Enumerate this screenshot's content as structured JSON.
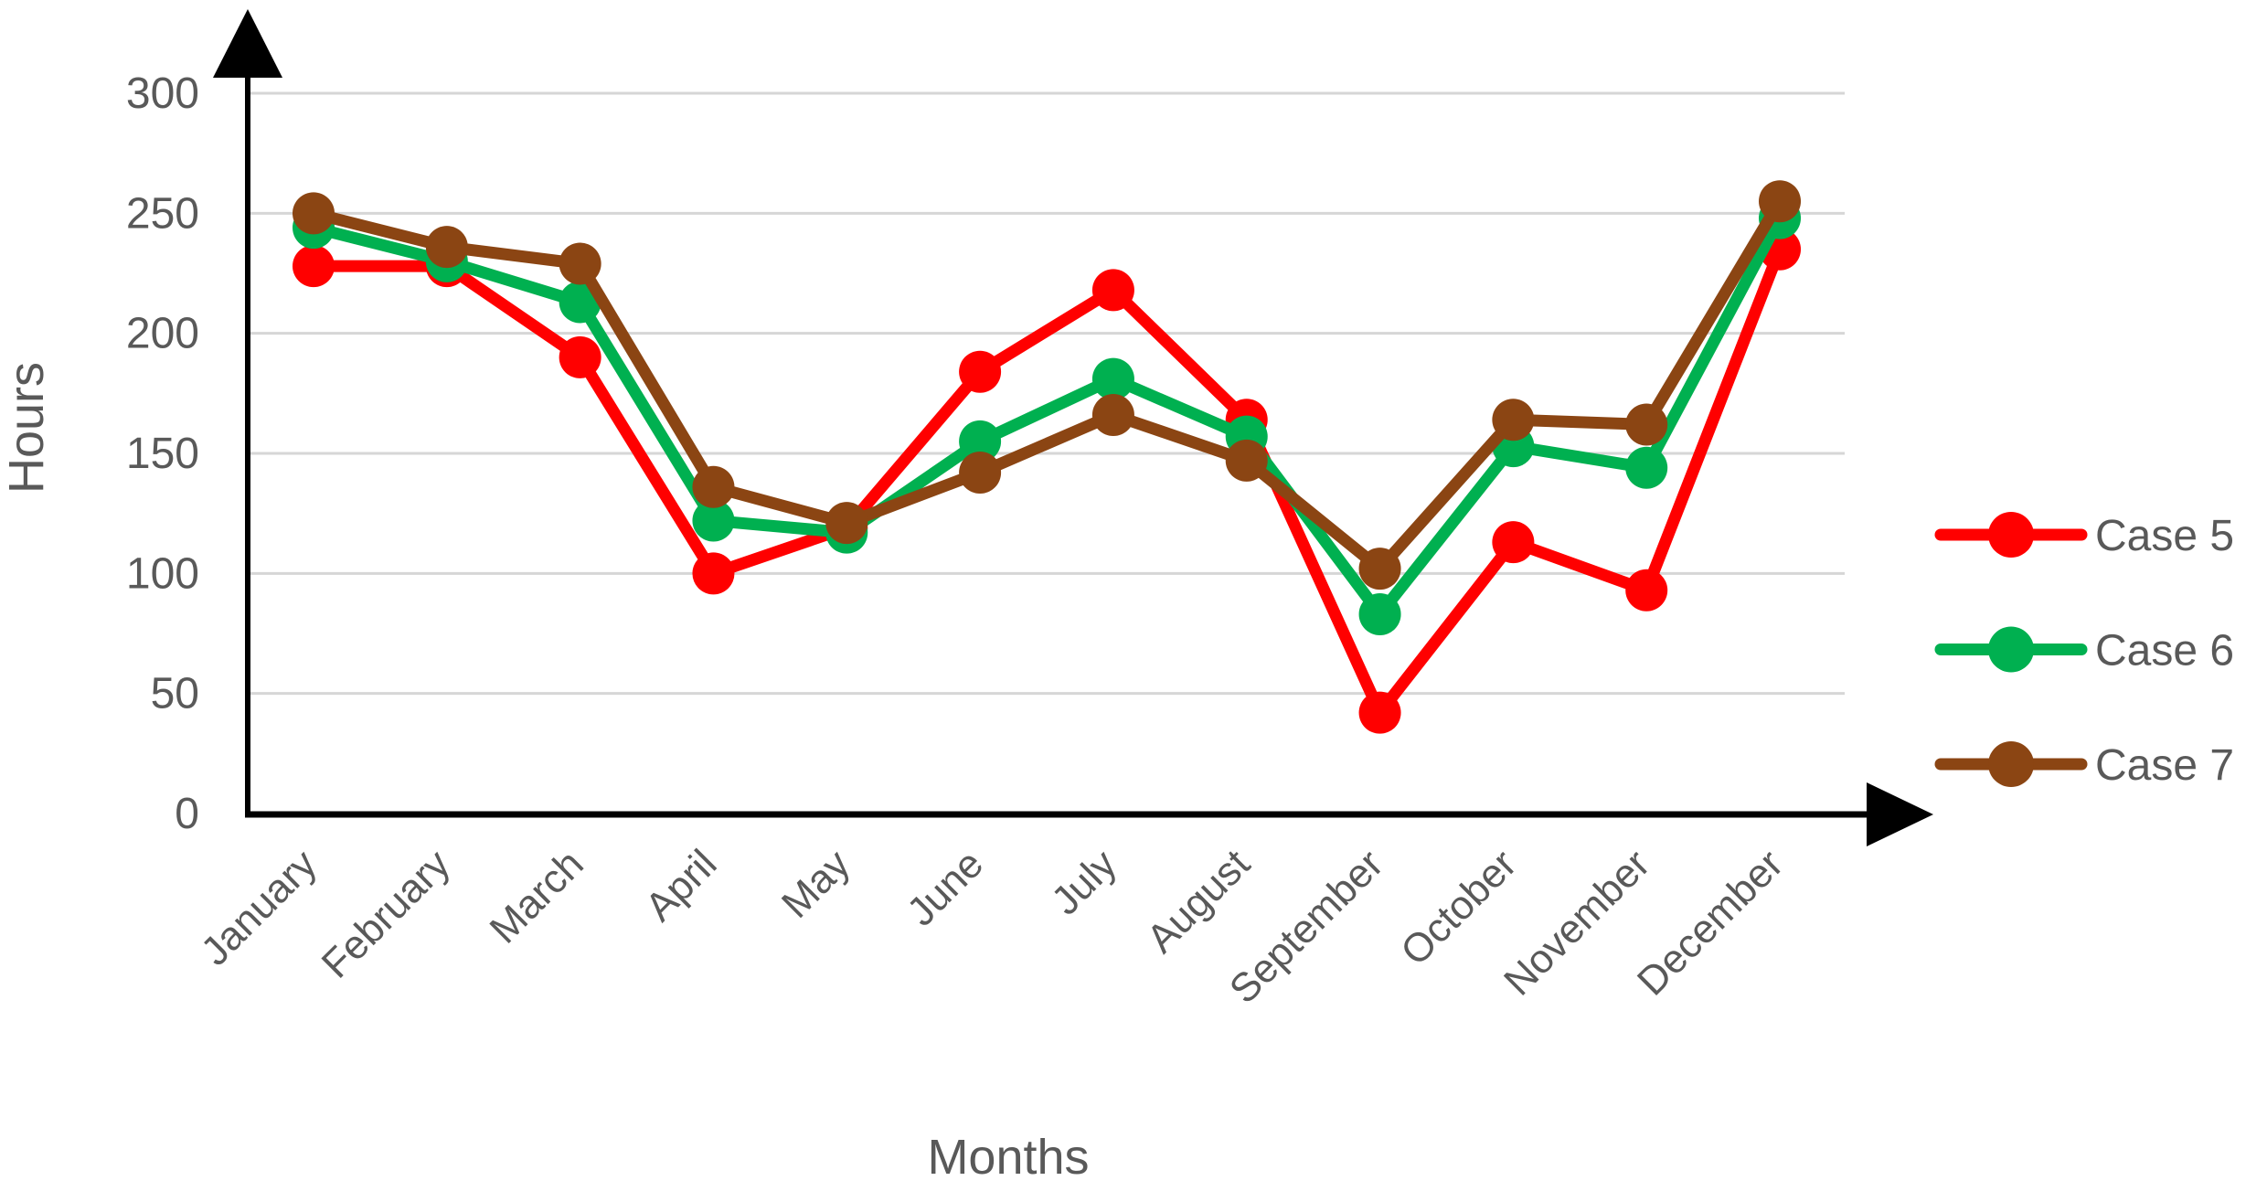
{
  "chart_data": {
    "type": "line",
    "title": "",
    "xlabel": "Months",
    "ylabel": "Hours",
    "categories": [
      "January",
      "February",
      "March",
      "April",
      "May",
      "June",
      "July",
      "August",
      "September",
      "October",
      "November",
      "December"
    ],
    "series": [
      {
        "name": "Case 5",
        "color": "#FF0000",
        "values": [
          228,
          228,
          190,
          100,
          119,
          184,
          218,
          164,
          42,
          113,
          93,
          235
        ]
      },
      {
        "name": "Case 6",
        "color": "#00B050",
        "values": [
          244,
          230,
          213,
          122,
          117,
          155,
          181,
          157,
          83,
          153,
          144,
          248
        ]
      },
      {
        "name": "Case 7",
        "color": "#8B4513",
        "values": [
          250,
          236,
          229,
          136,
          121,
          142,
          166,
          147,
          102,
          164,
          162,
          255
        ]
      }
    ],
    "ylim": [
      0,
      300
    ],
    "ytick_step": 50,
    "grid": true,
    "legend_position": "right"
  },
  "colors": {
    "axis": "#000000",
    "gridline": "#D6D6D6",
    "label_gray": "#595959",
    "background": "#FFFFFF"
  }
}
